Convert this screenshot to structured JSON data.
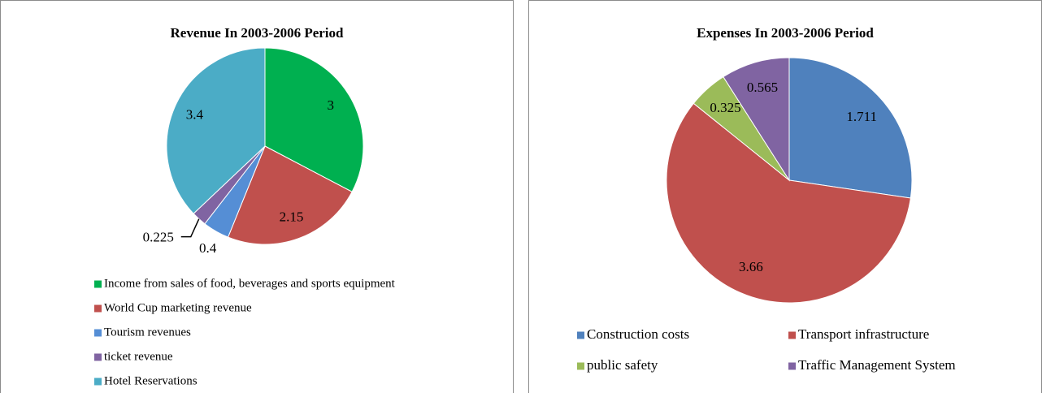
{
  "chart_data": [
    {
      "type": "pie",
      "title": "Revenue In 2003-2006 Period",
      "categories": [
        "Income from sales of food, beverages and sports equipment",
        "World Cup marketing revenue",
        "Tourism revenues",
        "ticket revenue",
        "Hotel Reservations"
      ],
      "values": [
        3,
        2.15,
        0.4,
        0.225,
        3.4
      ],
      "colors": [
        "#00b050",
        "#c0504d",
        "#558ed5",
        "#8064a2",
        "#4bacc6"
      ],
      "legend": "bottom"
    },
    {
      "type": "pie",
      "title": "Expenses In 2003-2006 Period",
      "categories": [
        "Construction costs",
        "Transport infrastructure",
        "public safety",
        "Traffic Management System"
      ],
      "values": [
        1.711,
        3.66,
        0.325,
        0.565
      ],
      "colors": [
        "#4f81bd",
        "#c0504d",
        "#9bbb59",
        "#8064a2"
      ],
      "legend": "bottom"
    }
  ]
}
